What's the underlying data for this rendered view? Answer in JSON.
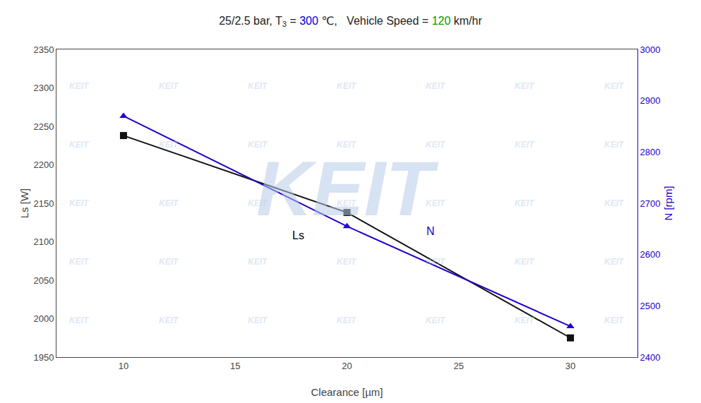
{
  "chart_data": {
    "type": "line",
    "title": [
      {
        "text": "25/2.5 bar, T",
        "color": "#222222"
      },
      {
        "text": "3",
        "color": "#222222",
        "sub": true
      },
      {
        "text": " = ",
        "color": "#222222"
      },
      {
        "text": "300",
        "color": "#0000dd"
      },
      {
        "text": " ℃,   Vehicle Speed = ",
        "color": "#222222"
      },
      {
        "text": "120",
        "color": "#009900"
      },
      {
        "text": " km/hr",
        "color": "#222222"
      }
    ],
    "x_label": "Clearance [µm]",
    "y_label": "Ls [W]",
    "y2_label": "N [rpm]",
    "x": [
      10,
      20,
      30
    ],
    "series": [
      {
        "values": [
          2238,
          2138,
          1975
        ],
        "color": "#111111",
        "marker": "square",
        "line_style": "solid"
      },
      {
        "values": [
          2870,
          2655,
          2460
        ],
        "color": "#2200cc",
        "marker": "triangle-up",
        "line_style": "solid",
        "axis": "y2"
      }
    ],
    "xlim": [
      7,
      33
    ],
    "xticks": [
      10,
      15,
      20,
      25,
      30
    ],
    "ylim": [
      1950,
      2350
    ],
    "yticks": [
      1950,
      2000,
      2050,
      2100,
      2150,
      2200,
      2250,
      2300,
      2350
    ],
    "y2lim": [
      2400,
      3000
    ],
    "y2ticks": [
      2400,
      2500,
      2600,
      2700,
      2800,
      2900,
      3000
    ],
    "annotations": [
      {
        "text": "Ls",
        "x": 17.5,
        "y": 2118,
        "color": "#000000"
      },
      {
        "text": "N",
        "x": 23.5,
        "y": 2660,
        "axis": "y2",
        "color": "#2200cc"
      },
      {
        "text": "KEIT",
        "color": "#b8cce8"
      }
    ],
    "grid": false,
    "legend": false
  }
}
